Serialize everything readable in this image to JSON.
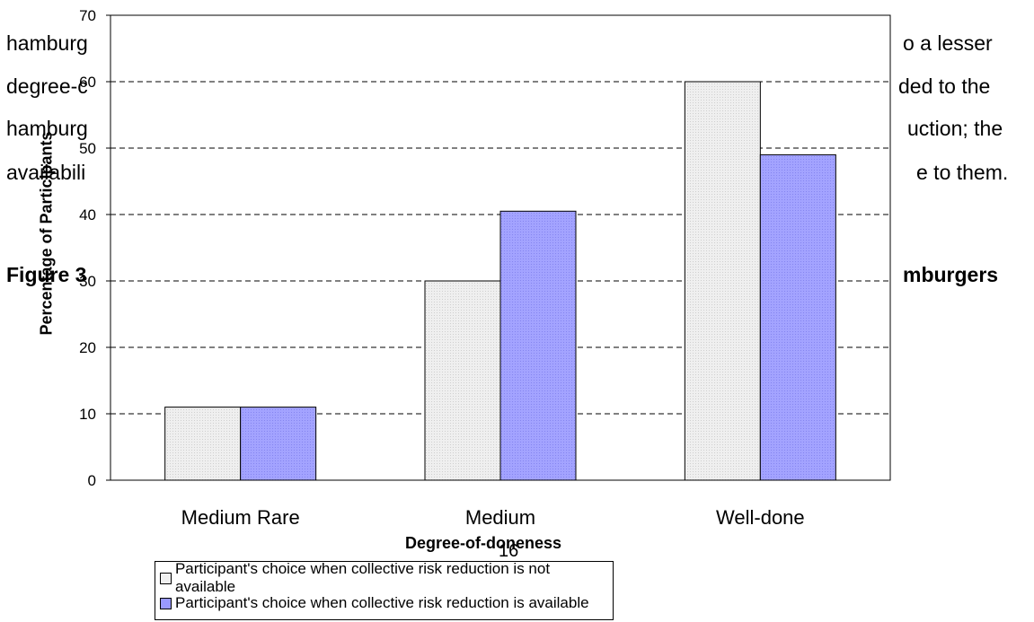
{
  "background_text": {
    "line1": "hamburg",
    "line1_right": "o a lesser",
    "line2": "degree-c",
    "line2_right": "ded to the",
    "line3": "hamburg",
    "line3_right": "uction; the",
    "line4": "availabili",
    "line4_right": "e to them.",
    "figure_left": "Figure 3",
    "figure_right": "mburgers"
  },
  "page_number": "16",
  "chart_data": {
    "type": "bar",
    "title": "",
    "xlabel": "Degree-of-doneness",
    "ylabel": "Percentage of Participants",
    "categories": [
      "Medium Rare",
      "Medium",
      "Well-done"
    ],
    "series": [
      {
        "name": "Participant's choice when collective risk reduction is not available",
        "values": [
          11,
          30,
          60
        ],
        "color": "#f0f0f0"
      },
      {
        "name": "Participant's choice when collective risk reduction is available",
        "values": [
          11,
          40.5,
          49
        ],
        "color": "#9999ff"
      }
    ],
    "ylim": [
      0,
      70
    ],
    "yticks": [
      0,
      10,
      20,
      30,
      40,
      50,
      60,
      70
    ],
    "grid": true,
    "legend_position": "bottom"
  }
}
